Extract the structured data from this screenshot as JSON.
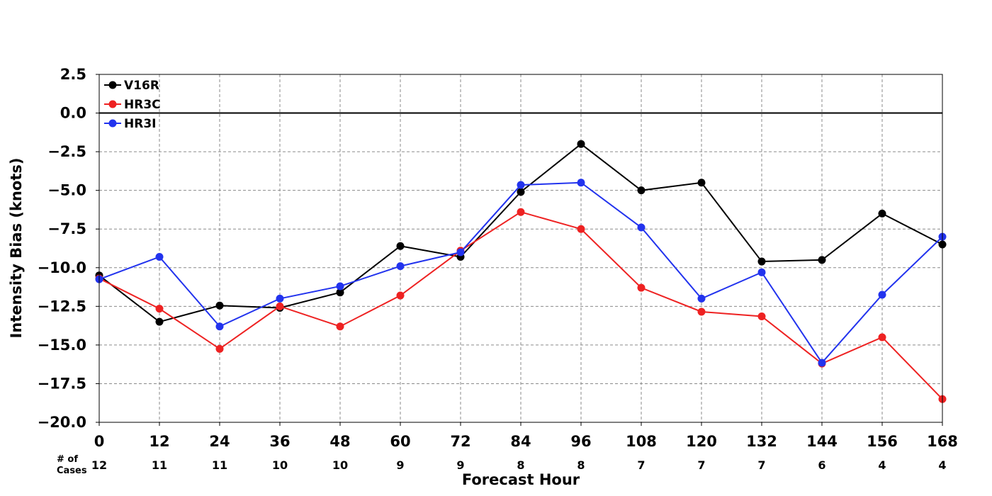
{
  "chart_data": {
    "type": "line",
    "title": "",
    "xlabel": "Forecast Hour",
    "ylabel": "Intensity Bias (knots)",
    "x": [
      0,
      12,
      24,
      36,
      48,
      60,
      72,
      84,
      96,
      108,
      120,
      132,
      144,
      156,
      168
    ],
    "xlim": [
      0,
      168
    ],
    "ylim": [
      -20.0,
      2.5
    ],
    "yticks": [
      2.5,
      0.0,
      -2.5,
      -5.0,
      -7.5,
      -10.0,
      -12.5,
      -15.0,
      -17.5,
      -20.0
    ],
    "ytick_labels": [
      "2.5",
      "0.0",
      "−2.5",
      "−5.0",
      "−7.5",
      "−10.0",
      "−12.5",
      "−15.0",
      "−17.5",
      "−20.0"
    ],
    "grid": true,
    "zero_line": true,
    "legend_position": "top-left",
    "cases_title": [
      "# of",
      "Cases"
    ],
    "cases": [
      12,
      11,
      11,
      10,
      10,
      9,
      9,
      8,
      8,
      7,
      7,
      7,
      6,
      4,
      4
    ],
    "series": [
      {
        "name": "V16R",
        "color": "#000000",
        "values": [
          -10.5,
          -13.5,
          -12.45,
          -12.6,
          -11.6,
          -8.6,
          -9.3,
          -5.1,
          -2.0,
          -5.0,
          -4.5,
          -9.6,
          -9.5,
          -6.5,
          -8.5
        ]
      },
      {
        "name": "HR3C",
        "color": "#ee2222",
        "values": [
          -10.7,
          -12.65,
          -15.25,
          -12.5,
          -13.8,
          -11.8,
          -8.9,
          -6.4,
          -7.5,
          -11.3,
          -12.85,
          -13.15,
          -16.2,
          -14.5,
          -18.5
        ]
      },
      {
        "name": "HR3I",
        "color": "#2233ee",
        "values": [
          -10.75,
          -9.3,
          -13.8,
          -12.0,
          -11.2,
          -9.9,
          -9.0,
          -4.65,
          -4.5,
          -7.4,
          -12.0,
          -10.3,
          -16.15,
          -11.75,
          -8.0
        ]
      }
    ]
  }
}
